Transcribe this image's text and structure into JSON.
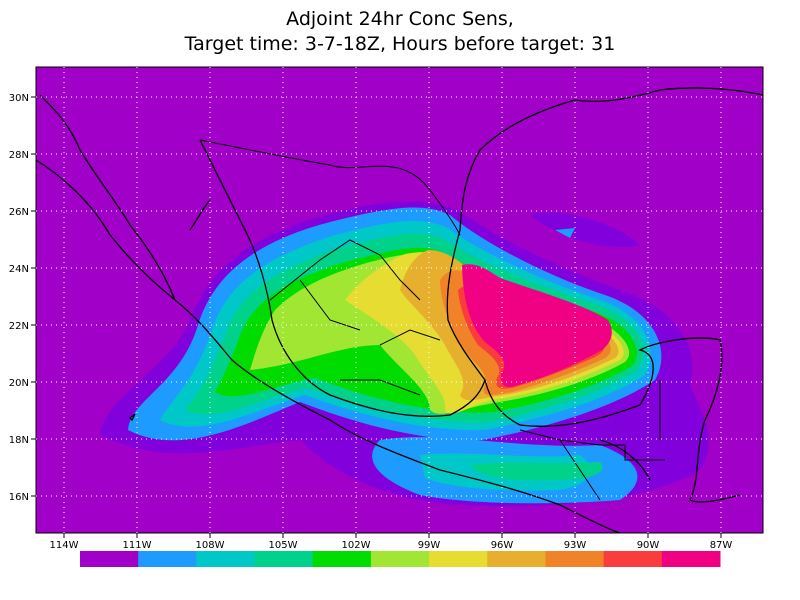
{
  "title_lines": [
    "Adjoint 24hr Conc Sens,",
    "Target time: 3-7-18Z, Hours before target: 31"
  ],
  "map": {
    "lon_ticks": [
      {
        "value": -114,
        "label": "114W"
      },
      {
        "value": -111,
        "label": "111W"
      },
      {
        "value": -108,
        "label": "108W"
      },
      {
        "value": -105,
        "label": "105W"
      },
      {
        "value": -102,
        "label": "102W"
      },
      {
        "value": -99,
        "label": "99W"
      },
      {
        "value": -96,
        "label": "96W"
      },
      {
        "value": -93,
        "label": "93W"
      },
      {
        "value": -90,
        "label": "90W"
      },
      {
        "value": -87,
        "label": "87W"
      }
    ],
    "lat_ticks": [
      {
        "value": 30,
        "label": "30N"
      },
      {
        "value": 28,
        "label": "28N"
      },
      {
        "value": 26,
        "label": "26N"
      },
      {
        "value": 24,
        "label": "24N"
      },
      {
        "value": 22,
        "label": "22N"
      },
      {
        "value": 20,
        "label": "20N"
      },
      {
        "value": 18,
        "label": "18N"
      },
      {
        "value": 16,
        "label": "16N"
      }
    ],
    "grid": true
  },
  "colorbar": {
    "colors": [
      "#a000c8",
      "#8200dc",
      "#1e9bff",
      "#00c8c8",
      "#00d28c",
      "#00dc00",
      "#a0e632",
      "#e6dc32",
      "#e6af2d",
      "#f08228",
      "#fa3c3c",
      "#f00082"
    ]
  }
}
